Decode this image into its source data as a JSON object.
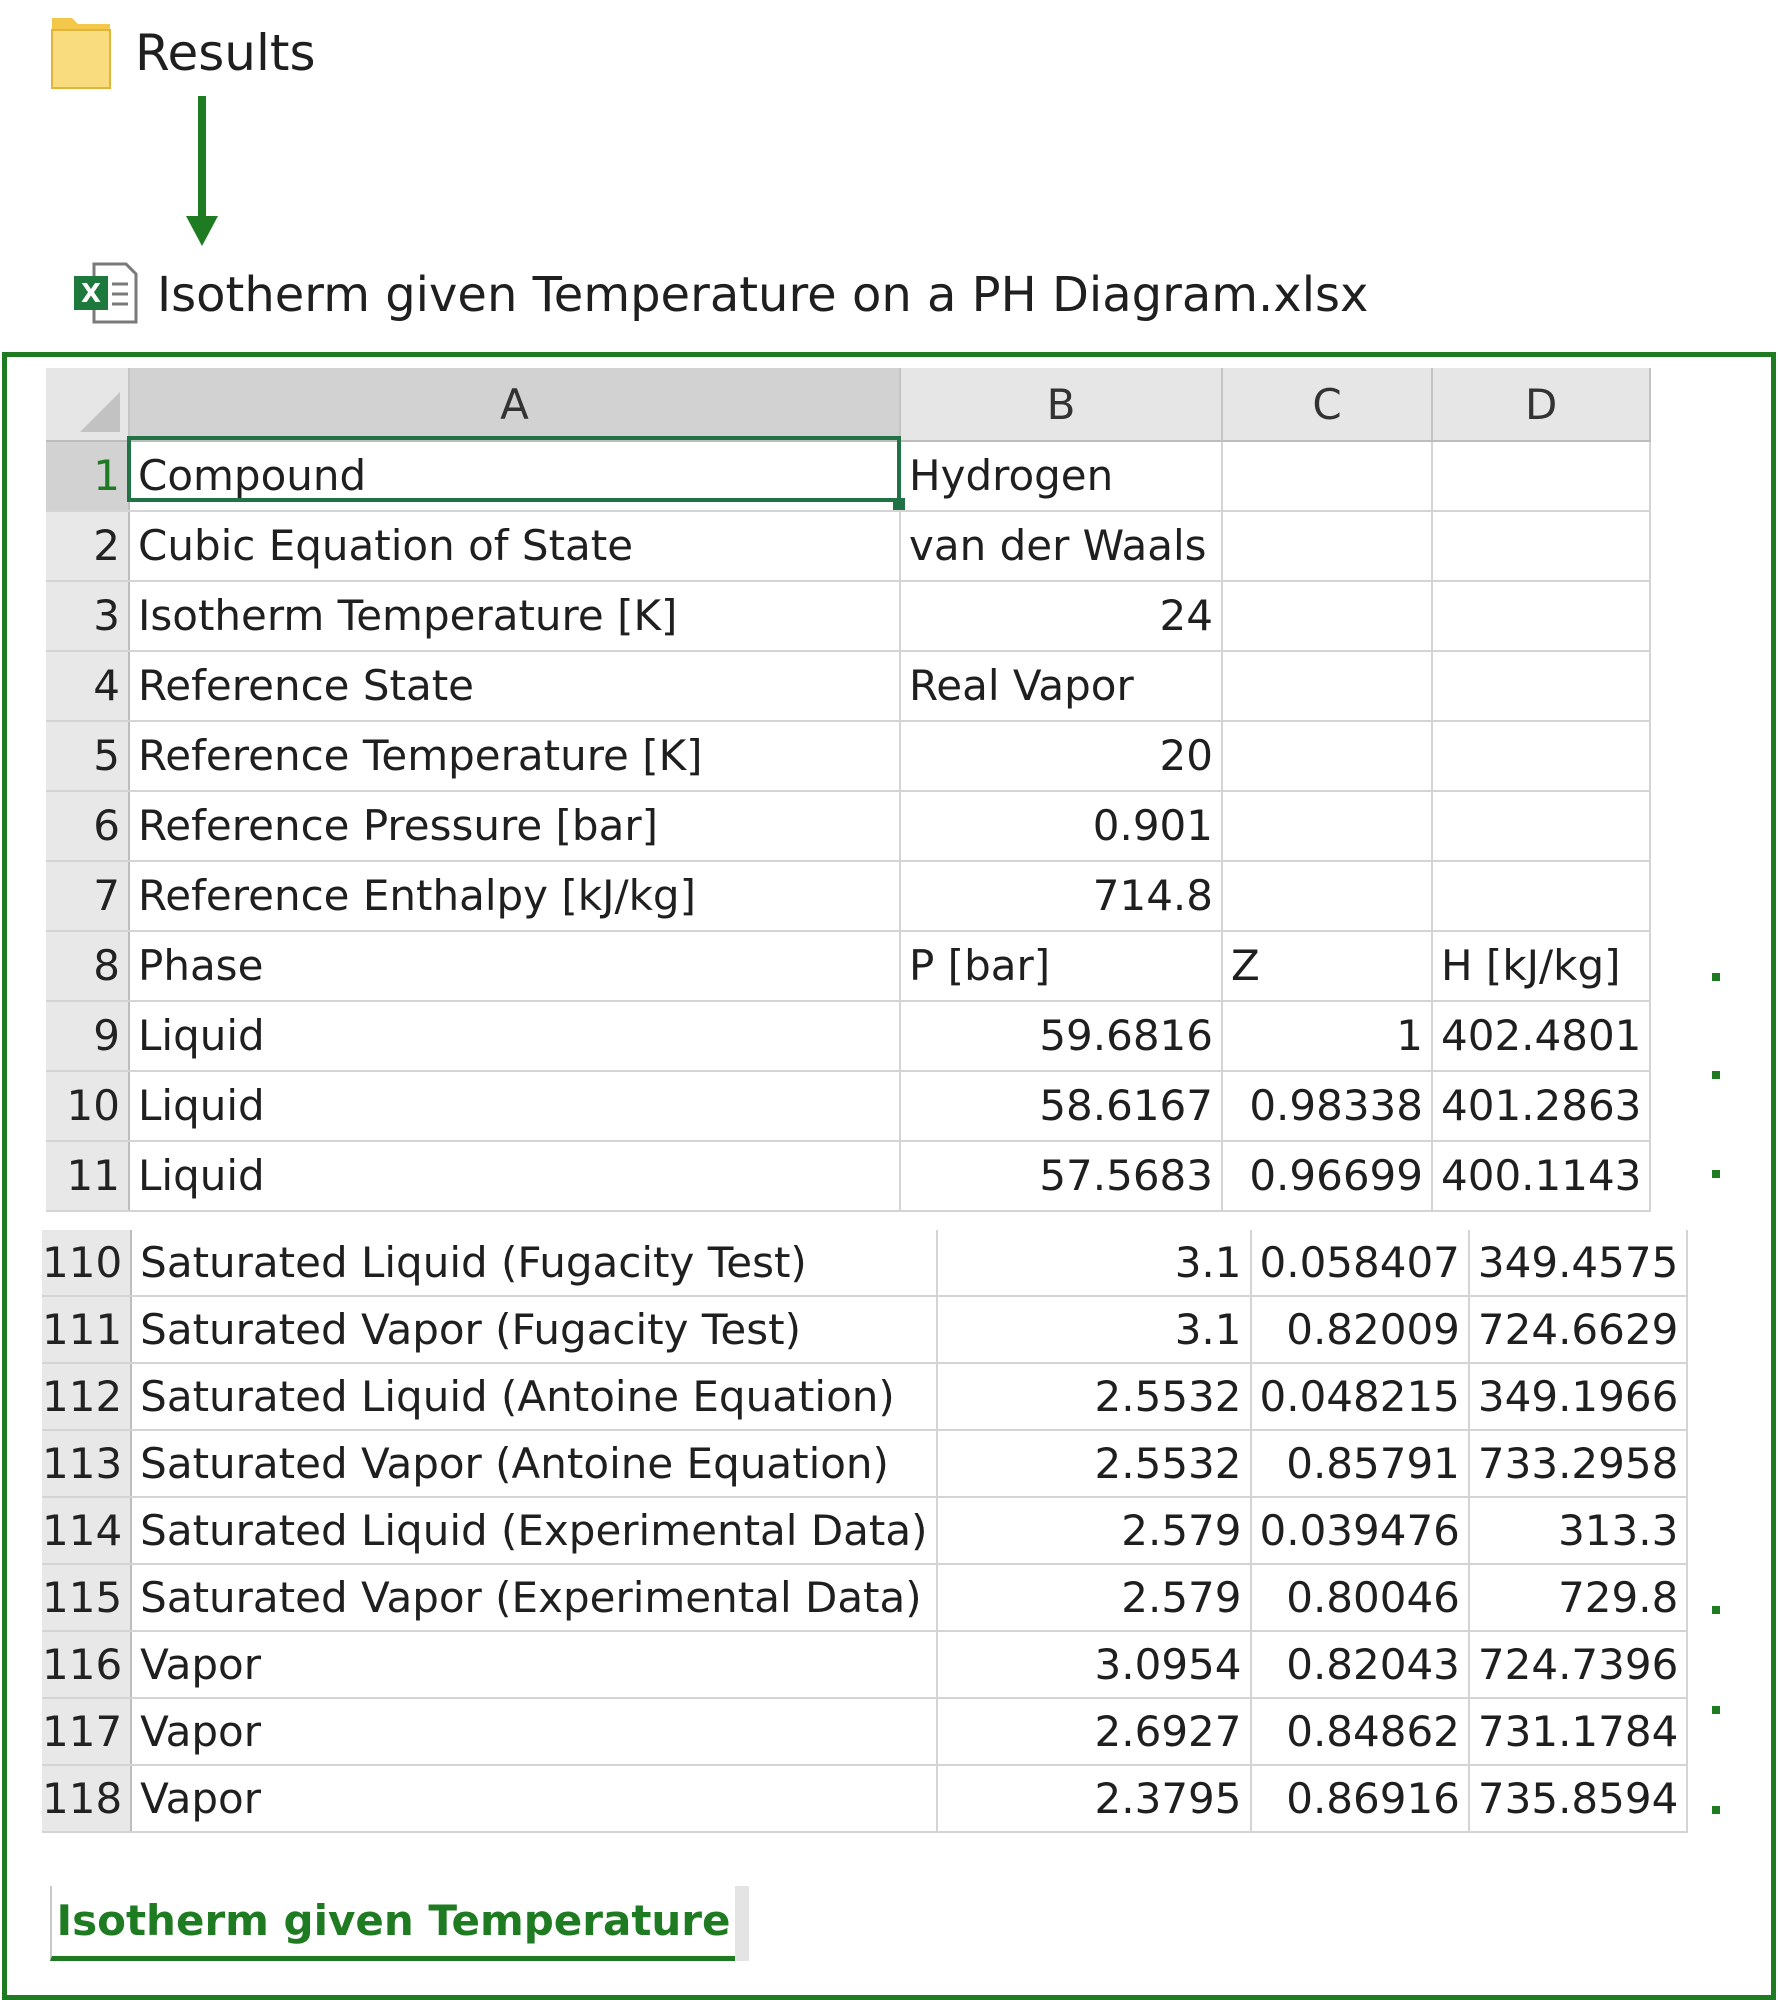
{
  "explorer": {
    "folder_name": "Results",
    "file_name": "Isotherm given Temperature on a PH Diagram.xlsx",
    "folder_icon": "folder-icon",
    "file_icon": "excel-file-icon"
  },
  "spreadsheet": {
    "columns": [
      "A",
      "B",
      "C",
      "D"
    ],
    "active_cell": "A1",
    "top_rows": [
      {
        "n": "1",
        "a": "Compound",
        "b": "Hydrogen",
        "c": "",
        "d": "",
        "b_align": "left"
      },
      {
        "n": "2",
        "a": "Cubic Equation of State",
        "b": "van der Waals",
        "c": "",
        "d": "",
        "b_align": "left"
      },
      {
        "n": "3",
        "a": "Isotherm Temperature [K]",
        "b": "24",
        "c": "",
        "d": "",
        "b_align": "right"
      },
      {
        "n": "4",
        "a": "Reference State",
        "b": "Real Vapor",
        "c": "",
        "d": "",
        "b_align": "left"
      },
      {
        "n": "5",
        "a": "Reference Temperature [K]",
        "b": "20",
        "c": "",
        "d": "",
        "b_align": "right"
      },
      {
        "n": "6",
        "a": "Reference Pressure [bar]",
        "b": "0.901",
        "c": "",
        "d": "",
        "b_align": "right"
      },
      {
        "n": "7",
        "a": "Reference Enthalpy [kJ/kg]",
        "b": "714.8",
        "c": "",
        "d": "",
        "b_align": "right"
      },
      {
        "n": "8",
        "a": "Phase",
        "b": "P [bar]",
        "c": "Z",
        "d": "H [kJ/kg]",
        "b_align": "left"
      },
      {
        "n": "9",
        "a": "Liquid",
        "b": "59.6816",
        "c": "1",
        "d": "402.4801",
        "b_align": "right"
      },
      {
        "n": "10",
        "a": "Liquid",
        "b": "58.6167",
        "c": "0.98338",
        "d": "401.2863",
        "b_align": "right"
      },
      {
        "n": "11",
        "a": "Liquid",
        "b": "57.5683",
        "c": "0.96699",
        "d": "400.1143",
        "b_align": "right"
      }
    ],
    "bottom_rows": [
      {
        "n": "110",
        "a": "Saturated Liquid (Fugacity Test)",
        "b": "3.1",
        "c": "0.058407",
        "d": "349.4575"
      },
      {
        "n": "111",
        "a": "Saturated Vapor (Fugacity Test)",
        "b": "3.1",
        "c": "0.82009",
        "d": "724.6629"
      },
      {
        "n": "112",
        "a": "Saturated Liquid (Antoine Equation)",
        "b": "2.5532",
        "c": "0.048215",
        "d": "349.1966"
      },
      {
        "n": "113",
        "a": "Saturated Vapor (Antoine Equation)",
        "b": "2.5532",
        "c": "0.85791",
        "d": "733.2958"
      },
      {
        "n": "114",
        "a": "Saturated Liquid (Experimental Data)",
        "b": "2.579",
        "c": "0.039476",
        "d": "313.3"
      },
      {
        "n": "115",
        "a": "Saturated Vapor (Experimental Data)",
        "b": "2.579",
        "c": "0.80046",
        "d": "729.8"
      },
      {
        "n": "116",
        "a": "Vapor",
        "b": "3.0954",
        "c": "0.82043",
        "d": "724.7396"
      },
      {
        "n": "117",
        "a": "Vapor",
        "b": "2.6927",
        "c": "0.84862",
        "d": "731.1784"
      },
      {
        "n": "118",
        "a": "Vapor",
        "b": "2.3795",
        "c": "0.86916",
        "d": "735.8594"
      }
    ],
    "sheet_tab": "Isotherm given Temperature"
  },
  "colors": {
    "accent_green": "#1e7b22",
    "excel_green": "#217346",
    "folder_yellow": "#f6cf5e"
  }
}
